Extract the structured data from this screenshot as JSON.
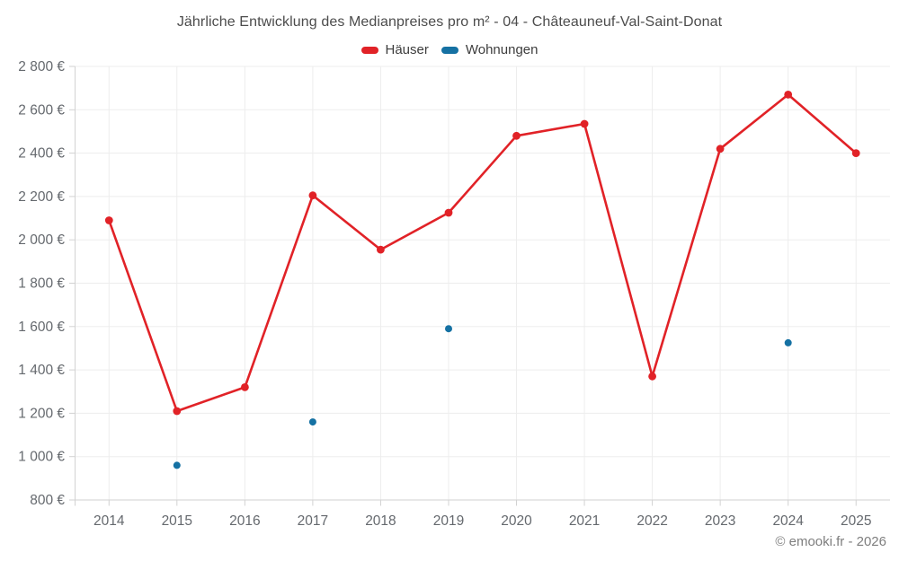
{
  "title": "Jährliche Entwicklung des Medianpreises pro m² - 04 - Châteauneuf-Val-Saint-Donat",
  "footer": "© emooki.fr - 2026",
  "legend": {
    "items": [
      {
        "label": "Häuser",
        "color": "#e12227"
      },
      {
        "label": "Wohnungen",
        "color": "#1571a3"
      }
    ]
  },
  "colors": {
    "haeuser": "#e12227",
    "wohnungen": "#1571a3",
    "gridline": "#ededed",
    "axis_border": "#d2d2d2",
    "tick_label": "#65696e",
    "title_text": "#4c4c4c",
    "footer_text": "#7e7e7e"
  },
  "chart_data": {
    "type": "line",
    "title": "Jährliche Entwicklung des Medianpreises pro m² - 04 - Châteauneuf-Val-Saint-Donat",
    "categories": [
      "2014",
      "2015",
      "2016",
      "2017",
      "2018",
      "2019",
      "2020",
      "2021",
      "2022",
      "2023",
      "2024",
      "2025"
    ],
    "series": [
      {
        "name": "Häuser",
        "color": "#e12227",
        "show_line": true,
        "marker_radius": 4.4,
        "values": [
          2090,
          1210,
          1320,
          2205,
          1955,
          2125,
          2480,
          2535,
          1370,
          2420,
          2670,
          2400
        ]
      },
      {
        "name": "Wohnungen",
        "color": "#1571a3",
        "show_line": false,
        "marker_radius": 4,
        "values": [
          null,
          960,
          null,
          1160,
          null,
          1590,
          null,
          null,
          null,
          null,
          1525,
          null
        ]
      }
    ],
    "xlabel": "",
    "ylabel": "",
    "ylim": [
      800,
      2800
    ],
    "ytick_step": 200,
    "ytick_labels": [
      "800 €",
      "1 000 €",
      "1 200 €",
      "1 400 €",
      "1 600 €",
      "1 800 €",
      "2 000 €",
      "2 200 €",
      "2 400 €",
      "2 600 €",
      "2 800 €"
    ],
    "grid": true,
    "legend_position": "top"
  }
}
